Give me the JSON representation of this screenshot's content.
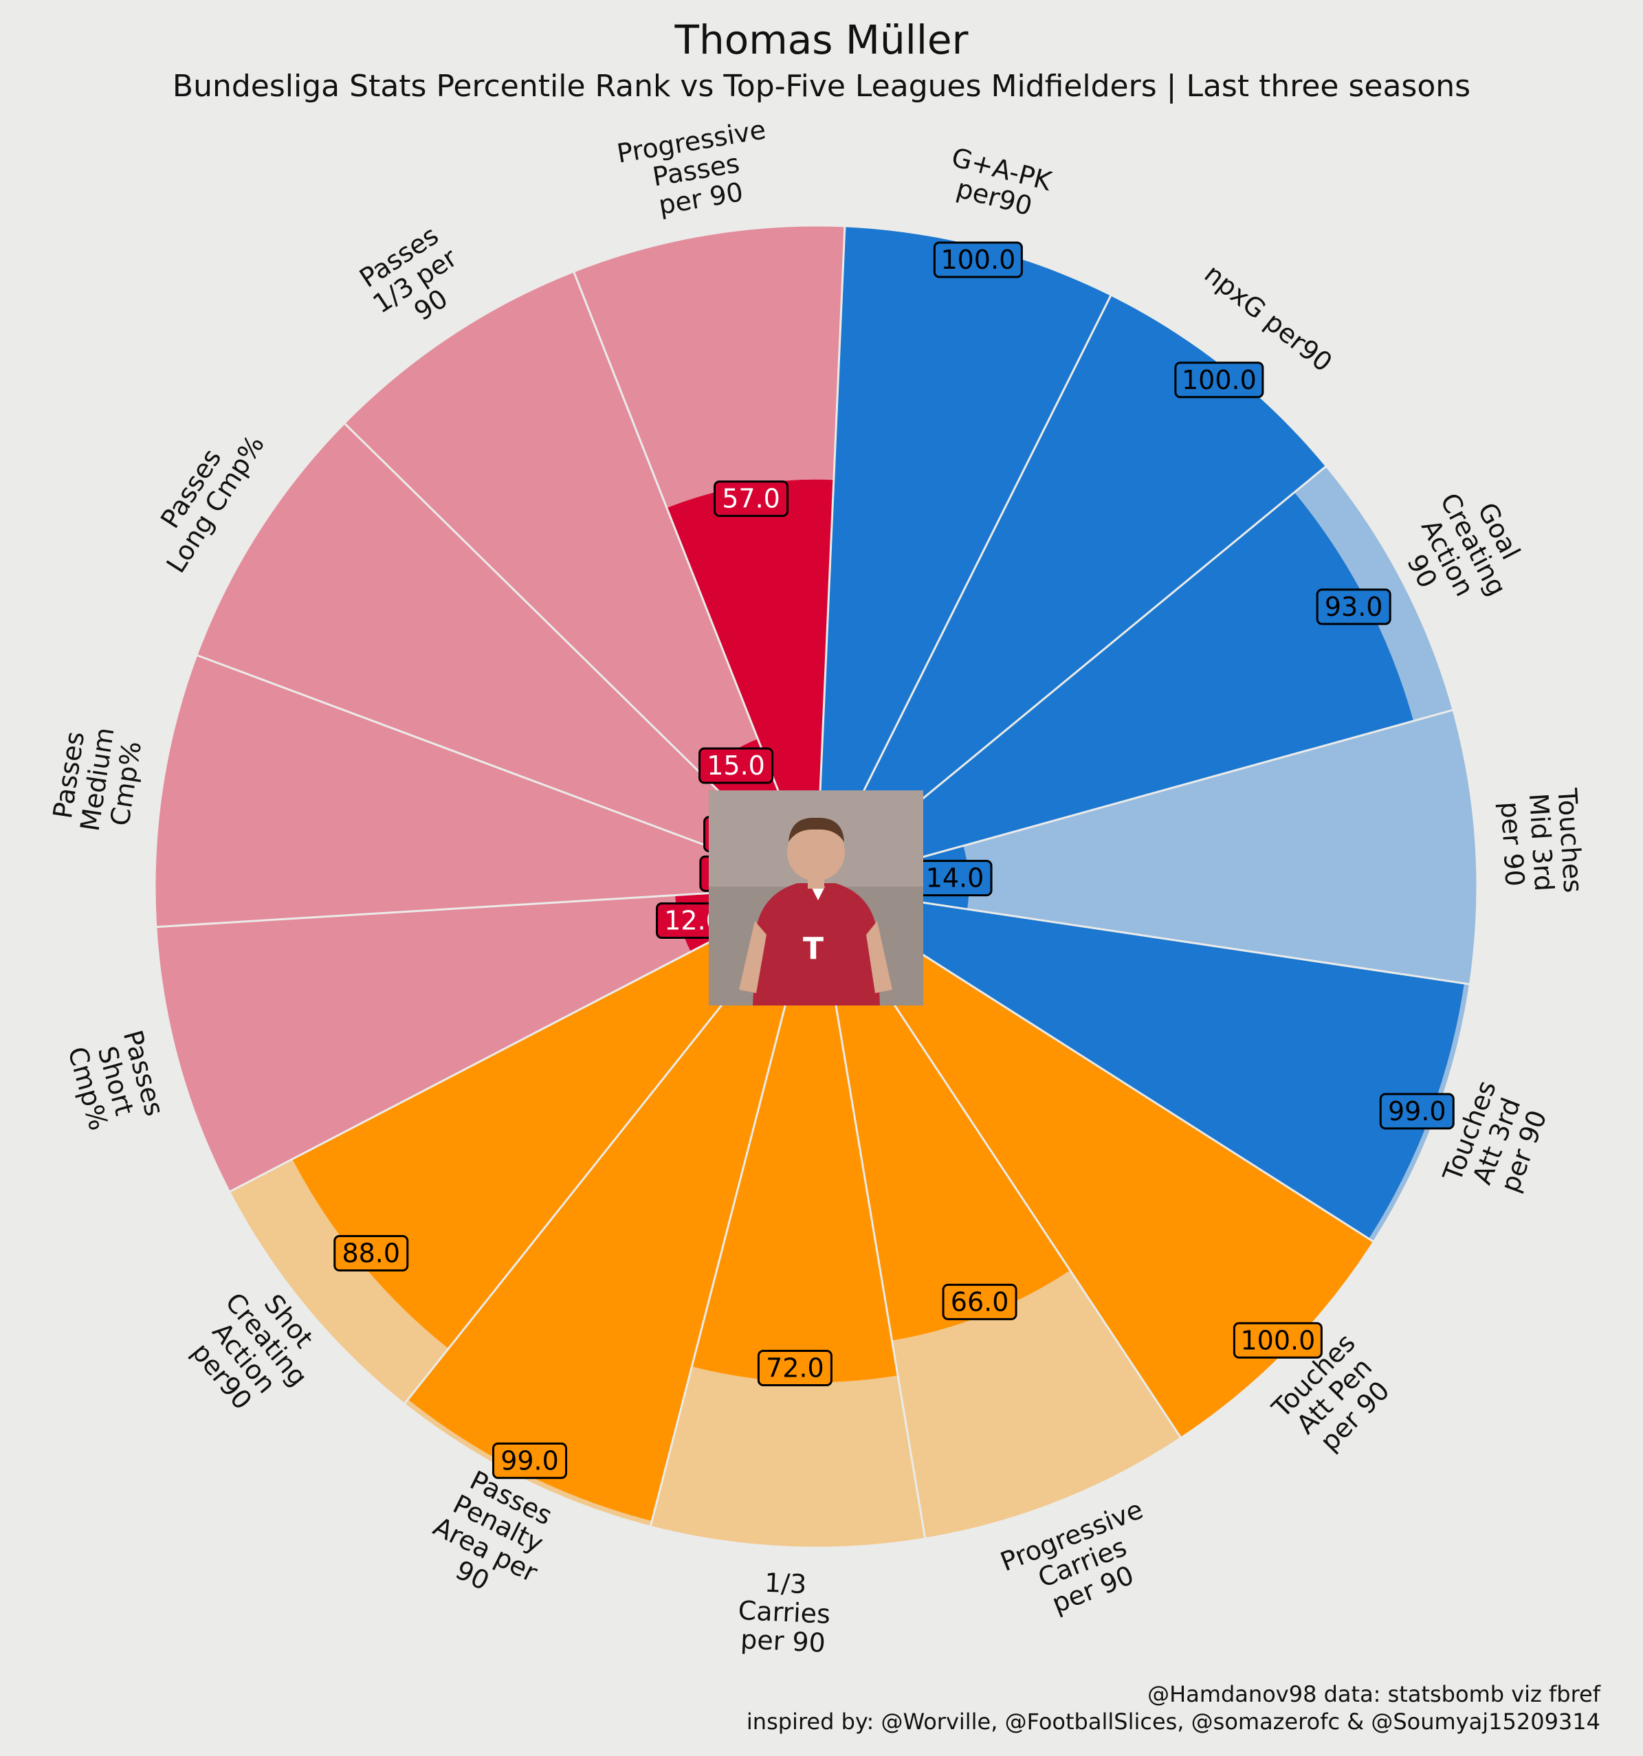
{
  "title": "Thomas Müller",
  "subtitle": "Bundesliga Stats Percentile Rank vs Top-Five Leagues Midfielders | Last three seasons",
  "footer": {
    "line1": "@Hamdanov98 data: statsbomb viz fbref",
    "line2": "inspired by: @Worville, @FootballSlices, @somazerofc & @Soumyaj15209314"
  },
  "player_photo_icon": "player-photo",
  "colors": {
    "background": "#ebebe9",
    "attacking": "#1b77cf",
    "attacking_light": "#98bcdf",
    "possession": "#ff9300",
    "possession_light": "#f1c88d",
    "passing": "#d70232",
    "passing_light": "#e38c9c"
  },
  "chart_data": {
    "type": "pie",
    "subtype": "radial percentile pizza",
    "range": [
      0,
      100
    ],
    "value_format": "one decimal",
    "slices": [
      {
        "label": "G+A-PK per90",
        "value": 100,
        "group": "attacking"
      },
      {
        "label": "npxG per90",
        "value": 100,
        "group": "attacking"
      },
      {
        "label": "Goal Creating Action 90",
        "value": 93,
        "group": "attacking"
      },
      {
        "label": "Touches Mid 3rd per 90",
        "value": 14,
        "group": "attacking"
      },
      {
        "label": "Touches Att 3rd per 90",
        "value": 99,
        "group": "attacking"
      },
      {
        "label": "Touches Att Pen per 90",
        "value": 100,
        "group": "possession"
      },
      {
        "label": "Progressive Carries per 90",
        "value": 66,
        "group": "possession"
      },
      {
        "label": "1/3 Carries per 90",
        "value": 72,
        "group": "possession"
      },
      {
        "label": "Passes Penalty Area per 90",
        "value": 99,
        "group": "possession"
      },
      {
        "label": "Shot Creating Action per90",
        "value": 88,
        "group": "possession"
      },
      {
        "label": "Passes Short Cmp%",
        "value": 12,
        "group": "passing"
      },
      {
        "label": "Passes Medium Cmp%",
        "value": 5,
        "group": "passing"
      },
      {
        "label": "Passes Long Cmp%",
        "value": 7,
        "group": "passing"
      },
      {
        "label": "Passes 1/3 per 90",
        "value": 15,
        "group": "passing"
      },
      {
        "label": "Progressive Passes per 90",
        "value": 57,
        "group": "passing"
      }
    ]
  }
}
